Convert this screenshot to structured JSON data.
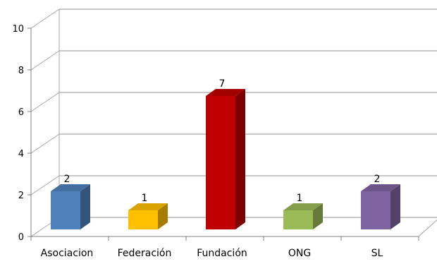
{
  "chart_data": {
    "type": "bar",
    "title": "",
    "xlabel": "",
    "ylabel": "",
    "categories": [
      "Asociacion",
      "Federación",
      "Fundación",
      "ONG",
      "SL"
    ],
    "values": [
      2,
      1,
      7,
      1,
      2
    ],
    "data_labels": [
      "2",
      "1",
      "7",
      "1",
      "2"
    ],
    "ylim": [
      0,
      10
    ],
    "yticks": [
      "0",
      "2",
      "4",
      "6",
      "8",
      "10"
    ],
    "grid": true,
    "legend": "none",
    "colors": [
      "#4f81bd",
      "#ffc000",
      "#c00000",
      "#9bbb59",
      "#8064a2"
    ],
    "grid_color": "#a6a6a6"
  }
}
